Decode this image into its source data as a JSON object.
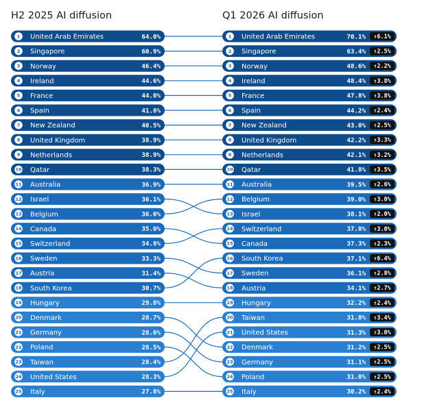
{
  "colors": {
    "top": "#0f4c8c",
    "mid": "#1c6bba",
    "low": "#2a7fd0",
    "connector": "#1c6bba",
    "change_badge": "#111111",
    "rank_circle": "#ffffff"
  },
  "chart_data": {
    "type": "slope-ranking",
    "panels": [
      {
        "title": "H2 2025 AI diffusion",
        "rows": [
          {
            "rank": 1,
            "country": "United Arab Emirates",
            "value": "64.0%"
          },
          {
            "rank": 2,
            "country": "Singapore",
            "value": "60.9%"
          },
          {
            "rank": 3,
            "country": "Norway",
            "value": "46.4%"
          },
          {
            "rank": 4,
            "country": "Ireland",
            "value": "44.6%"
          },
          {
            "rank": 5,
            "country": "France",
            "value": "44.0%"
          },
          {
            "rank": 6,
            "country": "Spain",
            "value": "41.8%"
          },
          {
            "rank": 7,
            "country": "New Zealand",
            "value": "40.5%"
          },
          {
            "rank": 8,
            "country": "United Kingdom",
            "value": "38.9%"
          },
          {
            "rank": 9,
            "country": "Netherlands",
            "value": "38.9%"
          },
          {
            "rank": 10,
            "country": "Qatar",
            "value": "38.3%"
          },
          {
            "rank": 11,
            "country": "Australia",
            "value": "36.9%"
          },
          {
            "rank": 12,
            "country": "Israel",
            "value": "36.1%"
          },
          {
            "rank": 13,
            "country": "Belgium",
            "value": "36.0%"
          },
          {
            "rank": 14,
            "country": "Canada",
            "value": "35.0%"
          },
          {
            "rank": 15,
            "country": "Switzerland",
            "value": "34.8%"
          },
          {
            "rank": 16,
            "country": "Sweden",
            "value": "33.3%"
          },
          {
            "rank": 17,
            "country": "Austria",
            "value": "31.4%"
          },
          {
            "rank": 18,
            "country": "South Korea",
            "value": "30.7%"
          },
          {
            "rank": 19,
            "country": "Hungary",
            "value": "29.8%"
          },
          {
            "rank": 20,
            "country": "Denmark",
            "value": "28.7%"
          },
          {
            "rank": 21,
            "country": "Germany",
            "value": "28.6%"
          },
          {
            "rank": 22,
            "country": "Poland",
            "value": "28.5%"
          },
          {
            "rank": 23,
            "country": "Taiwan",
            "value": "28.4%"
          },
          {
            "rank": 24,
            "country": "United States",
            "value": "28.3%"
          },
          {
            "rank": 25,
            "country": "Italy",
            "value": "27.8%"
          }
        ]
      },
      {
        "title": "Q1 2026 AI diffusion",
        "rows": [
          {
            "rank": 1,
            "country": "United Arab Emirates",
            "value": "70.1%",
            "change": "↑6.1%"
          },
          {
            "rank": 2,
            "country": "Singapore",
            "value": "63.4%",
            "change": "↑2.5%"
          },
          {
            "rank": 3,
            "country": "Norway",
            "value": "48.6%",
            "change": "↑2.2%"
          },
          {
            "rank": 4,
            "country": "Ireland",
            "value": "48.4%",
            "change": "↑3.8%"
          },
          {
            "rank": 5,
            "country": "France",
            "value": "47.8%",
            "change": "↑3.8%"
          },
          {
            "rank": 6,
            "country": "Spain",
            "value": "44.2%",
            "change": "↑2.4%"
          },
          {
            "rank": 7,
            "country": "New Zealand",
            "value": "43.0%",
            "change": "↑2.5%"
          },
          {
            "rank": 8,
            "country": "United Kingdom",
            "value": "42.2%",
            "change": "↑3.3%"
          },
          {
            "rank": 9,
            "country": "Netherlands",
            "value": "42.1%",
            "change": "↑3.2%"
          },
          {
            "rank": 10,
            "country": "Qatar",
            "value": "41.8%",
            "change": "↑3.5%"
          },
          {
            "rank": 11,
            "country": "Australia",
            "value": "39.5%",
            "change": "↑2.6%"
          },
          {
            "rank": 12,
            "country": "Belgium",
            "value": "39.0%",
            "change": "↑3.0%"
          },
          {
            "rank": 13,
            "country": "Israel",
            "value": "38.1%",
            "change": "↑2.0%"
          },
          {
            "rank": 14,
            "country": "Switzerland",
            "value": "37.8%",
            "change": "↑3.0%"
          },
          {
            "rank": 15,
            "country": "Canada",
            "value": "37.3%",
            "change": "↑2.3%"
          },
          {
            "rank": 16,
            "country": "South Korea",
            "value": "37.1%",
            "change": "↑6.4%"
          },
          {
            "rank": 17,
            "country": "Sweden",
            "value": "36.1%",
            "change": "↑2.8%"
          },
          {
            "rank": 18,
            "country": "Austria",
            "value": "34.1%",
            "change": "↑2.7%"
          },
          {
            "rank": 19,
            "country": "Hungary",
            "value": "32.2%",
            "change": "↑2.4%"
          },
          {
            "rank": 20,
            "country": "Taiwan",
            "value": "31.8%",
            "change": "↑3.4%"
          },
          {
            "rank": 21,
            "country": "United States",
            "value": "31.3%",
            "change": "↑3.0%"
          },
          {
            "rank": 22,
            "country": "Denmark",
            "value": "31.2%",
            "change": "↑2.5%"
          },
          {
            "rank": 23,
            "country": "Germany",
            "value": "31.1%",
            "change": "↑2.5%"
          },
          {
            "rank": 24,
            "country": "Poland",
            "value": "31.0%",
            "change": "↑2.5%"
          },
          {
            "rank": 25,
            "country": "Italy",
            "value": "30.2%",
            "change": "↑2.4%"
          }
        ]
      }
    ]
  }
}
